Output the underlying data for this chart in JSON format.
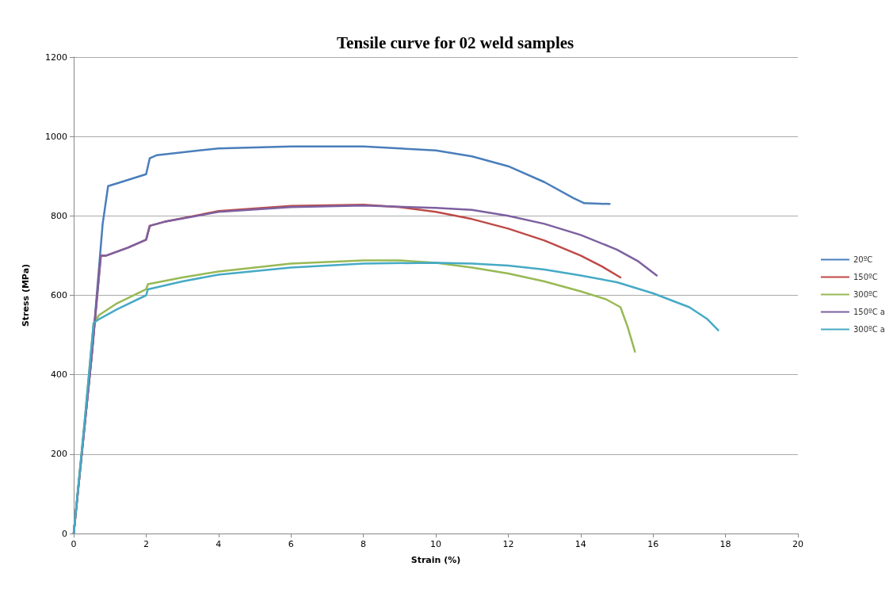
{
  "chart_data": {
    "type": "line",
    "title": "Tensile curve for 02 weld samples",
    "xlabel": "Strain (%)",
    "ylabel": "Stress (MPa)",
    "xlim": [
      0,
      20
    ],
    "xticks": [
      0,
      2,
      4,
      6,
      8,
      10,
      12,
      14,
      16,
      18,
      20
    ],
    "ylim": [
      0,
      1200
    ],
    "yticks": [
      0,
      200,
      400,
      600,
      800,
      1000,
      1200
    ],
    "grid": "y",
    "legend": "right",
    "marker": "none",
    "series": [
      {
        "name": "20ºC",
        "color": "#4a7ebb",
        "x": [
          0,
          0.5,
          0.8,
          0.95,
          1.2,
          2.0,
          2.1,
          2.3,
          4,
          6,
          8,
          10,
          11,
          12,
          13,
          13.8,
          14.1,
          14.8
        ],
        "values": [
          0,
          450,
          780,
          875,
          882,
          905,
          945,
          953,
          970,
          975,
          975,
          965,
          950,
          925,
          885,
          845,
          832,
          830
        ]
      },
      {
        "name": "150ºC",
        "color": "#be4b48",
        "x": [
          0,
          0.5,
          0.7,
          0.75,
          0.9,
          1.5,
          2.0,
          2.1,
          2.5,
          4,
          6,
          8,
          9,
          10,
          11,
          12,
          13,
          14,
          14.6,
          15.1
        ],
        "values": [
          0,
          450,
          650,
          700,
          700,
          720,
          740,
          775,
          785,
          812,
          825,
          828,
          822,
          810,
          792,
          768,
          738,
          700,
          672,
          645
        ]
      },
      {
        "name": "300ºC",
        "color": "#98b954",
        "x": [
          0,
          0.3,
          0.55,
          0.7,
          1.2,
          2,
          2.05,
          3,
          4,
          6,
          8,
          9,
          10,
          11,
          12,
          13,
          14,
          14.7,
          15.1,
          15.3,
          15.5
        ],
        "values": [
          0,
          280,
          530,
          550,
          580,
          615,
          628,
          645,
          660,
          680,
          688,
          688,
          682,
          670,
          655,
          635,
          610,
          590,
          570,
          520,
          458
        ]
      },
      {
        "name": "150ºC a",
        "color": "#7d60a0",
        "x": [
          0,
          0.5,
          0.7,
          0.75,
          0.9,
          1.5,
          2.0,
          2.1,
          2.5,
          4,
          6,
          8,
          10,
          11,
          12,
          13,
          14,
          15,
          15.6,
          16.1
        ],
        "values": [
          0,
          450,
          650,
          700,
          700,
          720,
          740,
          775,
          785,
          810,
          822,
          826,
          820,
          815,
          800,
          780,
          752,
          715,
          685,
          650
        ]
      },
      {
        "name": "300ºC a",
        "color": "#46aac5",
        "x": [
          0,
          0.3,
          0.55,
          0.7,
          1.2,
          2,
          2.05,
          3,
          4,
          6,
          8,
          10,
          11,
          12,
          13,
          14,
          15,
          16,
          17,
          17.5,
          17.8
        ],
        "values": [
          0,
          280,
          530,
          540,
          565,
          600,
          615,
          635,
          652,
          670,
          680,
          682,
          680,
          675,
          665,
          650,
          633,
          605,
          570,
          540,
          512
        ]
      }
    ]
  }
}
